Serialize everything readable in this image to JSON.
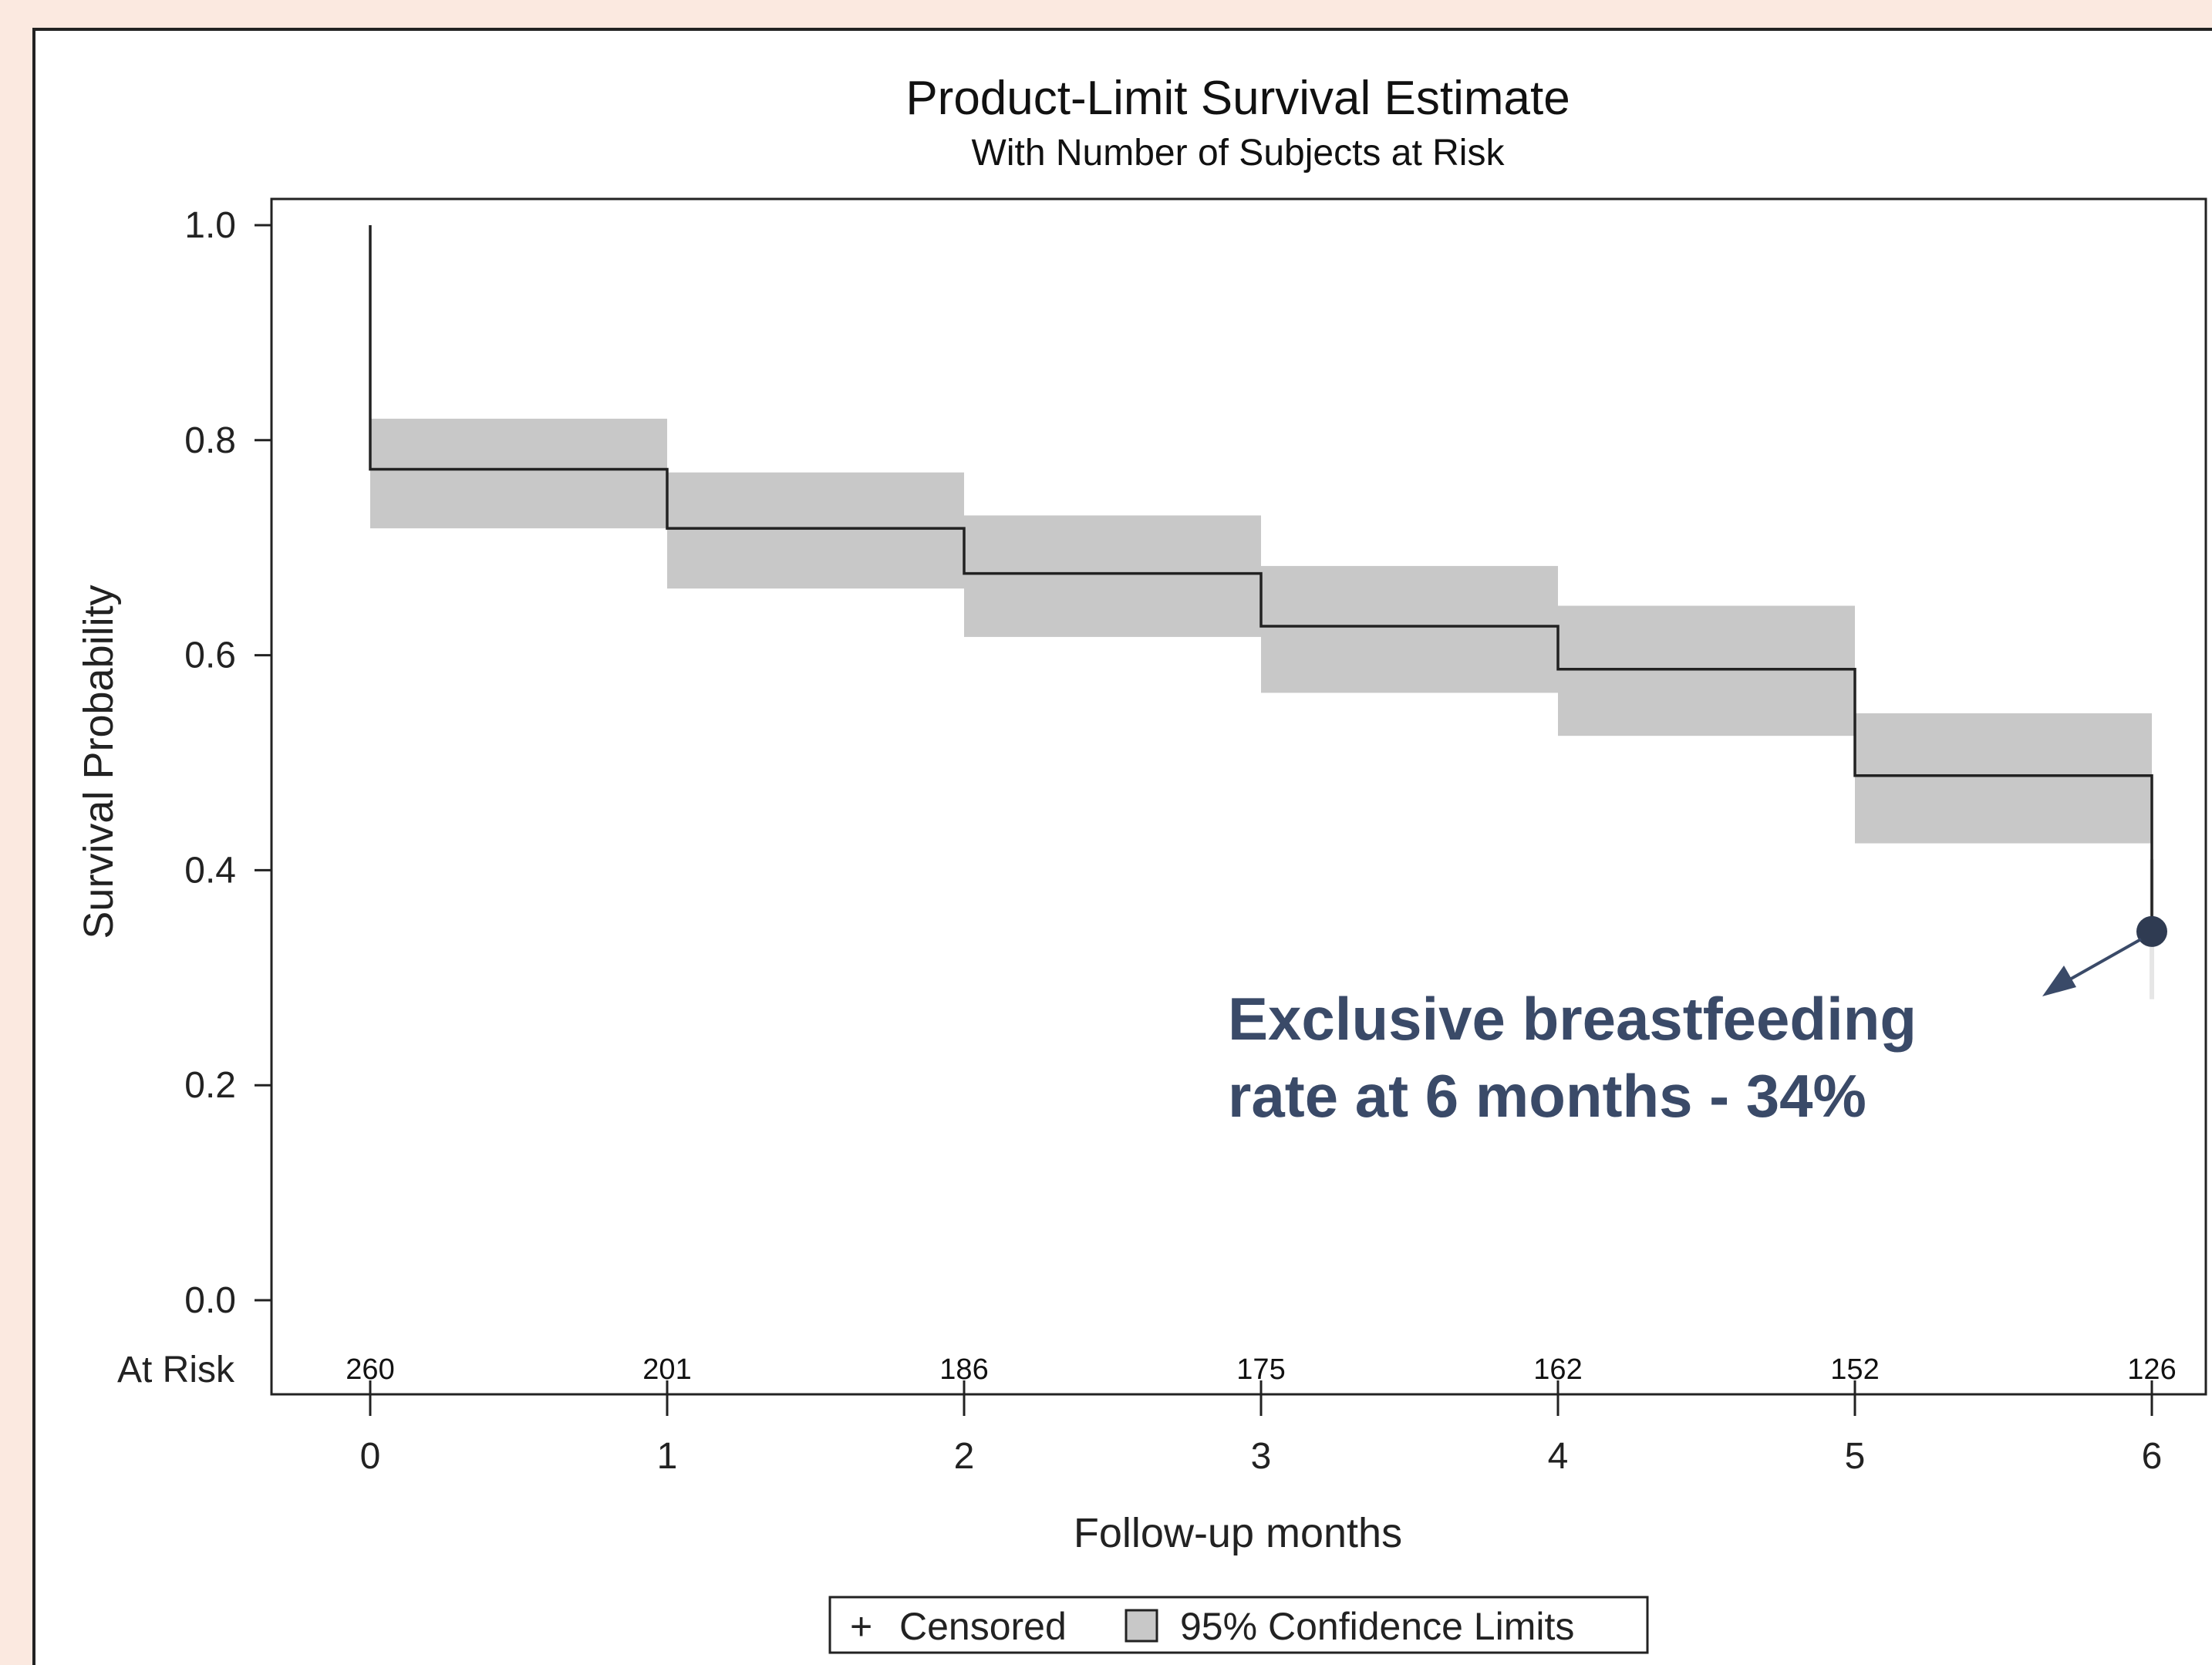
{
  "chart_data": {
    "type": "line",
    "step": true,
    "title": "Product-Limit Survival Estimate",
    "subtitle": "With Number of Subjects at Risk",
    "xlabel": "Follow-up months",
    "ylabel": "Survival Probability",
    "xlim": [
      0,
      6
    ],
    "ylim": [
      0,
      1
    ],
    "x_ticks": [
      0,
      1,
      2,
      3,
      4,
      5,
      6
    ],
    "y_ticks": [
      "0.0",
      "0.2",
      "0.4",
      "0.6",
      "0.8",
      "1.0"
    ],
    "grid": false,
    "series": [
      {
        "x": [
          0,
          1,
          2,
          3,
          4,
          5,
          6
        ],
        "survival": [
          0.773,
          0.718,
          0.676,
          0.627,
          0.587,
          0.488,
          0.343
        ],
        "ci_lower": [
          0.718,
          0.662,
          0.617,
          0.565,
          0.525,
          0.425,
          0.28
        ],
        "ci_upper": [
          0.82,
          0.77,
          0.73,
          0.683,
          0.646,
          0.546,
          0.41
        ]
      }
    ],
    "at_risk": {
      "label": "At Risk",
      "x": [
        0,
        1,
        2,
        3,
        4,
        5,
        6
      ],
      "counts": [
        "260",
        "201",
        "186",
        "175",
        "162",
        "152",
        "126"
      ]
    },
    "highlight_point": {
      "x": 6,
      "y": 0.343
    },
    "annotation": {
      "line1": "Exclusive breastfeeding",
      "line2": "rate at 6 months - 34%"
    },
    "legend": {
      "placement": "bottom",
      "censored": "Censored",
      "censored_symbol": "+",
      "ci": "95% Confidence Limits"
    },
    "colors": {
      "background": "#fbe9e0",
      "ci_band": "#c8c8c8",
      "line": "#222222",
      "annotation": "#3a4a68",
      "marker": "#2f3b52"
    }
  }
}
